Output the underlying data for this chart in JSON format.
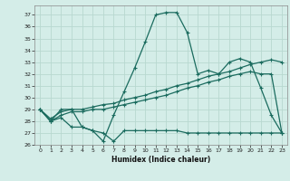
{
  "xlabel": "Humidex (Indice chaleur)",
  "bg_color": "#d4ede8",
  "line_color": "#1a6b5e",
  "grid_color": "#b8d8d0",
  "xlim": [
    -0.5,
    23.5
  ],
  "ylim": [
    26,
    37.8
  ],
  "yticks": [
    26,
    27,
    28,
    29,
    30,
    31,
    32,
    33,
    34,
    35,
    36,
    37
  ],
  "xticks": [
    0,
    1,
    2,
    3,
    4,
    5,
    6,
    7,
    8,
    9,
    10,
    11,
    12,
    13,
    14,
    15,
    16,
    17,
    18,
    19,
    20,
    21,
    22,
    23
  ],
  "series": [
    {
      "x": [
        0,
        1,
        2,
        3,
        4,
        5,
        6,
        7,
        8,
        9,
        10,
        11,
        12,
        13,
        14,
        15,
        16,
        17,
        18,
        19,
        20,
        21,
        22,
        23
      ],
      "y": [
        29.0,
        28.0,
        29.0,
        29.0,
        27.5,
        27.2,
        26.3,
        28.5,
        30.5,
        32.5,
        34.7,
        37.0,
        37.2,
        37.2,
        35.5,
        32.0,
        32.3,
        32.0,
        33.0,
        33.3,
        33.0,
        30.8,
        28.5,
        27.0
      ]
    },
    {
      "x": [
        0,
        1,
        2,
        3,
        4,
        5,
        6,
        7,
        8,
        9,
        10,
        11,
        12,
        13,
        14,
        15,
        16,
        17,
        18,
        19,
        20,
        21,
        22,
        23
      ],
      "y": [
        29.0,
        28.2,
        28.8,
        29.0,
        29.0,
        29.2,
        29.4,
        29.5,
        29.8,
        30.0,
        30.2,
        30.5,
        30.7,
        31.0,
        31.2,
        31.5,
        31.8,
        32.0,
        32.2,
        32.5,
        32.8,
        33.0,
        33.2,
        33.0
      ]
    },
    {
      "x": [
        0,
        1,
        2,
        3,
        4,
        5,
        6,
        7,
        8,
        9,
        10,
        11,
        12,
        13,
        14,
        15,
        16,
        17,
        18,
        19,
        20,
        21,
        22,
        23
      ],
      "y": [
        29.0,
        28.0,
        28.5,
        28.8,
        28.8,
        29.0,
        29.0,
        29.2,
        29.4,
        29.6,
        29.8,
        30.0,
        30.2,
        30.5,
        30.8,
        31.0,
        31.3,
        31.5,
        31.8,
        32.0,
        32.2,
        32.0,
        32.0,
        27.0
      ]
    },
    {
      "x": [
        0,
        1,
        2,
        3,
        4,
        5,
        6,
        7,
        8,
        9,
        10,
        11,
        12,
        13,
        14,
        15,
        16,
        17,
        18,
        19,
        20,
        21,
        22,
        23
      ],
      "y": [
        29.0,
        28.0,
        28.3,
        27.5,
        27.5,
        27.2,
        27.0,
        26.3,
        27.2,
        27.2,
        27.2,
        27.2,
        27.2,
        27.2,
        27.0,
        27.0,
        27.0,
        27.0,
        27.0,
        27.0,
        27.0,
        27.0,
        27.0,
        27.0
      ]
    }
  ]
}
